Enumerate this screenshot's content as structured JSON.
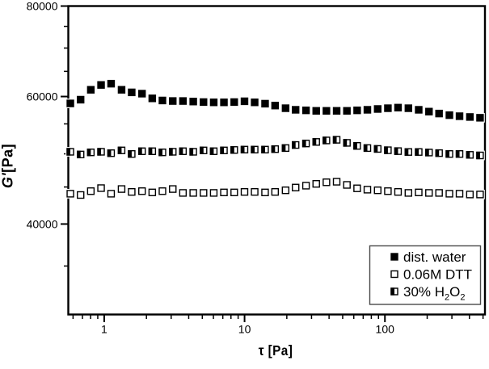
{
  "figure": {
    "background": "#ffffff",
    "foreground": "#000000",
    "legend_border_color": "#4a4a4a"
  },
  "chart_data": {
    "type": "scatter",
    "title": "",
    "xlabel": "τ [Pa]",
    "ylabel": "G'[Pa]",
    "xlabel_runs": [
      {
        "t": "τ [Pa]",
        "italic": false
      }
    ],
    "ylabel_runs": [
      {
        "t": "G'",
        "italic": true
      },
      {
        "t": "[Pa]",
        "italic": false
      }
    ],
    "x_scale": "log",
    "y_scale": "log",
    "xlim": [
      0.555,
      516
    ],
    "ylim": [
      30000,
      80000
    ],
    "x_major_ticks": [
      1,
      10,
      100
    ],
    "x_major_labels": [
      "1",
      "10",
      "100"
    ],
    "x_minor_ticks": [
      0.6,
      0.7,
      0.8,
      0.9,
      2,
      3,
      4,
      5,
      6,
      7,
      8,
      9,
      20,
      30,
      40,
      50,
      60,
      70,
      80,
      90,
      200,
      300,
      400,
      500
    ],
    "y_major_ticks": [
      40000,
      60000,
      80000
    ],
    "y_major_labels": [
      "40000",
      "60000",
      "80000"
    ],
    "y_minor_ticks": [
      35000,
      45000,
      50000,
      55000,
      65000,
      70000,
      75000
    ],
    "grid": false,
    "legend_position": "bottom-right",
    "x": [
      0.574,
      0.679,
      0.803,
      0.95,
      1.12,
      1.33,
      1.57,
      1.86,
      2.2,
      2.6,
      3.08,
      3.64,
      4.31,
      5.1,
      6.03,
      7.13,
      8.44,
      9.99,
      11.8,
      14,
      16.5,
      19.6,
      23.1,
      27.4,
      32.4,
      38.3,
      45.3,
      53.6,
      63.4,
      75,
      88.8,
      105,
      124,
      147,
      174,
      206,
      243,
      288,
      340,
      403,
      476
    ],
    "series": [
      {
        "name": "dist. water",
        "marker": "filled-square",
        "label_runs": [
          {
            "t": "dist. water",
            "sub": false
          }
        ],
        "values": [
          58700,
          59400,
          61300,
          62250,
          62500,
          61300,
          60800,
          60550,
          59650,
          59250,
          59150,
          59150,
          59050,
          58950,
          58900,
          58900,
          58950,
          59100,
          58900,
          58650,
          58300,
          57810,
          57520,
          57420,
          57330,
          57330,
          57330,
          57330,
          57420,
          57520,
          57670,
          57810,
          57920,
          57810,
          57520,
          57190,
          56840,
          56550,
          56360,
          56220,
          56080
        ]
      },
      {
        "name": "0.06M DTT",
        "marker": "open-square",
        "label_runs": [
          {
            "t": "0.06M DTT",
            "sub": false
          }
        ],
        "values": [
          44050,
          43870,
          44410,
          44840,
          44050,
          44710,
          44300,
          44410,
          44230,
          44410,
          44710,
          44160,
          44160,
          44160,
          44160,
          44230,
          44230,
          44300,
          44300,
          44230,
          44300,
          44530,
          44920,
          45190,
          45450,
          45680,
          45760,
          45300,
          44810,
          44620,
          44530,
          44410,
          44300,
          44160,
          44230,
          44160,
          44160,
          44050,
          44050,
          43940,
          43940
        ]
      },
      {
        "name": "30% H2O2",
        "marker": "half-filled-square",
        "label_runs": [
          {
            "t": "30% H",
            "sub": false
          },
          {
            "t": "2",
            "sub": true
          },
          {
            "t": "O",
            "sub": false
          },
          {
            "t": "2",
            "sub": true
          }
        ],
        "values": [
          50330,
          49900,
          50240,
          50330,
          50110,
          50550,
          49980,
          50420,
          50420,
          50240,
          50330,
          50420,
          50330,
          50550,
          50420,
          50550,
          50620,
          50680,
          50680,
          50680,
          50760,
          50930,
          51430,
          51680,
          51930,
          52180,
          52290,
          51780,
          51280,
          50930,
          50790,
          50580,
          50440,
          50300,
          50300,
          50210,
          50120,
          49980,
          49980,
          49840,
          49750
        ]
      }
    ]
  }
}
